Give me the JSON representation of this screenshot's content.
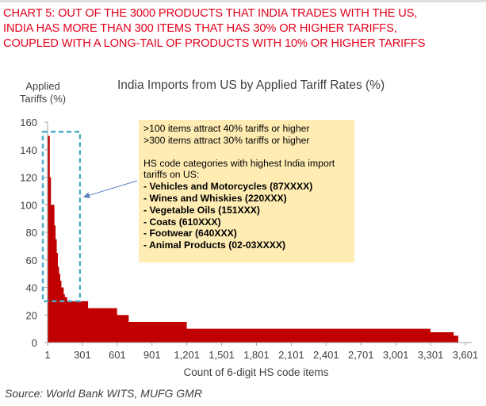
{
  "headline": {
    "line1": "CHART 5: OUT OF THE 3000 PRODUCTS THAT INDIA TRADES WITH THE US,",
    "line2": "INDIA HAS MORE THAN 300 ITEMS THAT HAS 30% OR HIGHER TARIFFS,",
    "line3": "COUPLED WITH A LONG-TAIL OF PRODUCTS WITH 10% OR HIGHER TARIFFS"
  },
  "source": "Source: World Bank WITS, MUFG GMR",
  "colors": {
    "headline": "#e3001b",
    "area": "#c00000",
    "annotation_bg": "#ffecb3",
    "highlight_box": "#4bacc6"
  },
  "annotation": {
    "line1": ">100 items attract 40% tariffs or higher",
    "line2": ">300 items attract 30% tariffs or higher",
    "intro1": "HS code categories with highest India import",
    "intro2": "tariffs on US:",
    "items": [
      "- Vehicles and Motorcycles (87XXXX)",
      "- Wines and Whiskies (220XXX)",
      "- Vegetable Oils (151XXX)",
      "- Coats (610XXX)",
      "- Footwear (640XXX)",
      "- Animal Products (02-03XXXX)"
    ]
  },
  "chart_data": {
    "type": "area",
    "title": "India Imports from US by Applied Tariff Rates (%)",
    "ylabel_line1": "Applied",
    "ylabel_line2": "Tariffs (%)",
    "xlabel": "Count of 6-digit HS code items",
    "ylim": [
      0,
      160
    ],
    "xlim": [
      1,
      3601
    ],
    "yticks": [
      0,
      20,
      40,
      60,
      80,
      100,
      120,
      140,
      160
    ],
    "xticks": [
      1,
      301,
      601,
      901,
      1201,
      1501,
      1801,
      2101,
      2401,
      2701,
      3001,
      3301,
      3601
    ],
    "xtick_labels": [
      "1",
      "301",
      "601",
      "901",
      "1,201",
      "1,501",
      "1,801",
      "2,101",
      "2,401",
      "2,701",
      "3,001",
      "3,301",
      "3,601"
    ],
    "grid": false,
    "highlight_x_range": [
      1,
      280
    ],
    "highlight_y_range": [
      30,
      153
    ],
    "series": [
      {
        "x": [
          1,
          15,
          20,
          30,
          40,
          50,
          60,
          70,
          80,
          90,
          100,
          110,
          120,
          140,
          150,
          170,
          200,
          250,
          350,
          500,
          600,
          700,
          900,
          1100,
          1200,
          1500,
          1800,
          2100,
          2400,
          2700,
          3000,
          3300,
          3500,
          3540
        ],
        "y": [
          150,
          150,
          120,
          100,
          100,
          100,
          85,
          75,
          65,
          55,
          50,
          45,
          40,
          35,
          33,
          30,
          30,
          30,
          25,
          25,
          20,
          15,
          15,
          15,
          10,
          10,
          10,
          10,
          10,
          10,
          10,
          7.5,
          5,
          5
        ]
      }
    ]
  }
}
